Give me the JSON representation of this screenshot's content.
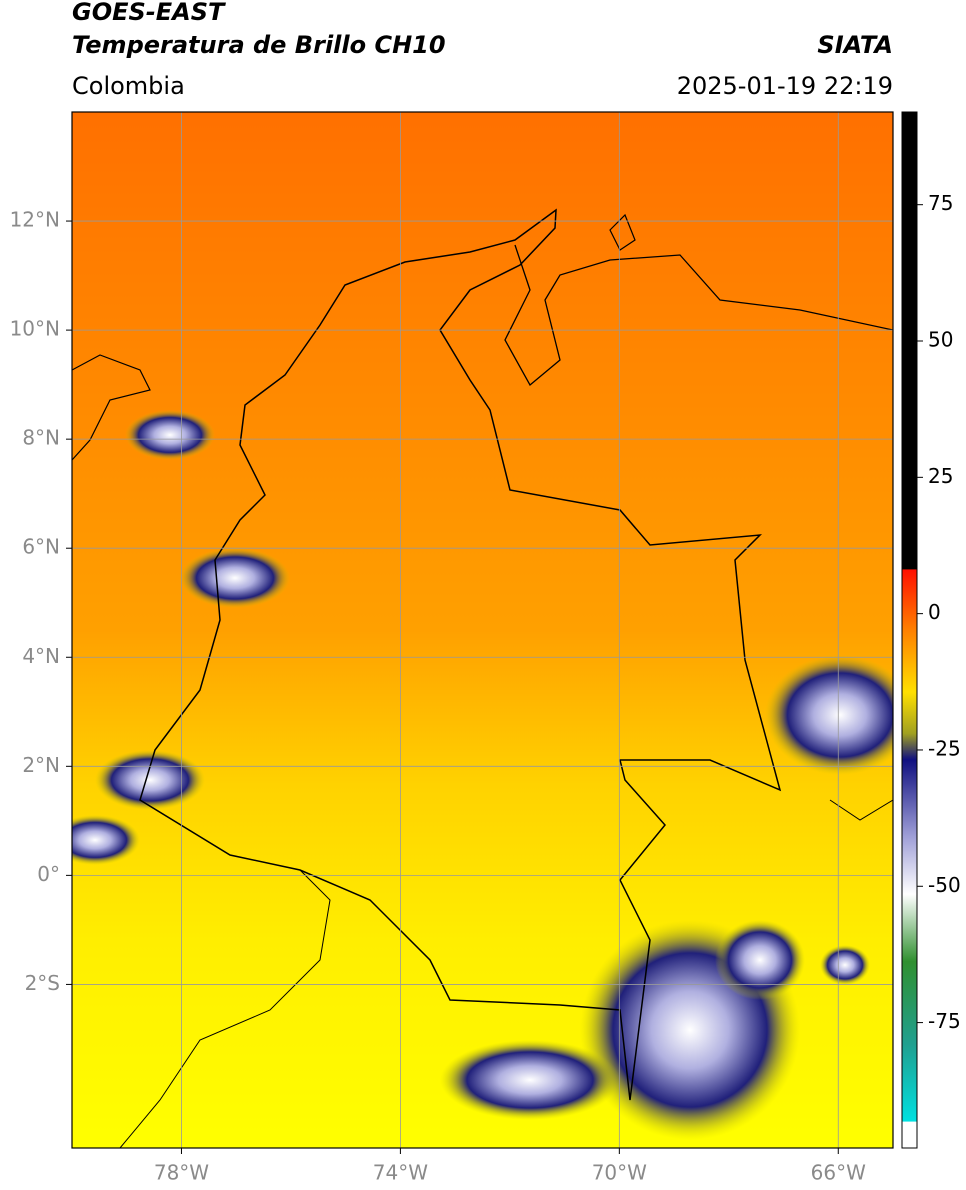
{
  "header": {
    "title": "GOES-EAST",
    "subtitle": "Temperatura de Brillo CH10",
    "source": "SIATA",
    "region": "Colombia",
    "timestamp": "2025-01-19 22:19"
  },
  "map": {
    "lonlim": [
      -80,
      -65
    ],
    "latlim": [
      -5,
      14
    ],
    "lonticks": [
      {
        "value": -78,
        "label": "78°W"
      },
      {
        "value": -74,
        "label": "74°W"
      },
      {
        "value": -70,
        "label": "70°W"
      },
      {
        "value": -66,
        "label": "66°W"
      }
    ],
    "latticks": [
      {
        "value": 12,
        "label": "12°N"
      },
      {
        "value": 10,
        "label": "10°N"
      },
      {
        "value": 8,
        "label": "8°N"
      },
      {
        "value": 6,
        "label": "6°N"
      },
      {
        "value": 4,
        "label": "4°N"
      },
      {
        "value": 2,
        "label": "2°N"
      },
      {
        "value": 0,
        "label": "0°"
      },
      {
        "value": -2,
        "label": "2°S"
      }
    ],
    "grid": true
  },
  "colorbar": {
    "lim": [
      -98,
      92
    ],
    "ticks": [
      75,
      50,
      25,
      0,
      -25,
      -50,
      -75
    ]
  }
}
